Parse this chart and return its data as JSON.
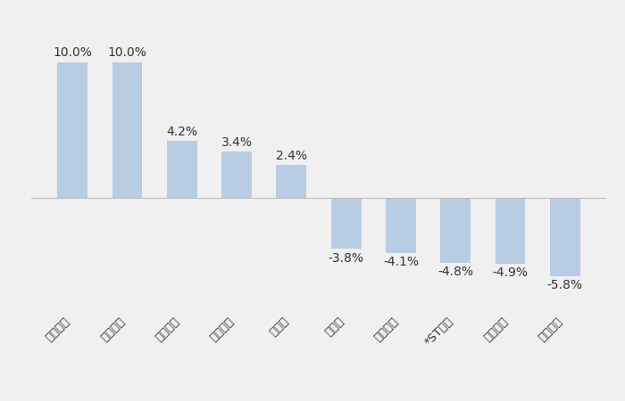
{
  "categories": [
    "一鸣食品",
    "惠发食品",
    "盖世食品",
    "青岛食品",
    "水井坊",
    "泉阳泉",
    "海欣食品",
    "*ST西发",
    "交大昂立",
    "春雪食品"
  ],
  "values": [
    10.0,
    10.0,
    4.2,
    3.4,
    2.4,
    -3.8,
    -4.1,
    -4.8,
    -4.9,
    -5.8
  ],
  "bar_color": "#b8cce4",
  "background_color": "#f0f0f0",
  "label_fontsize": 10,
  "tick_fontsize": 9.5,
  "ylim": [
    -8.5,
    12.5
  ],
  "figsize": [
    7.0,
    4.5
  ],
  "dpi": 100
}
